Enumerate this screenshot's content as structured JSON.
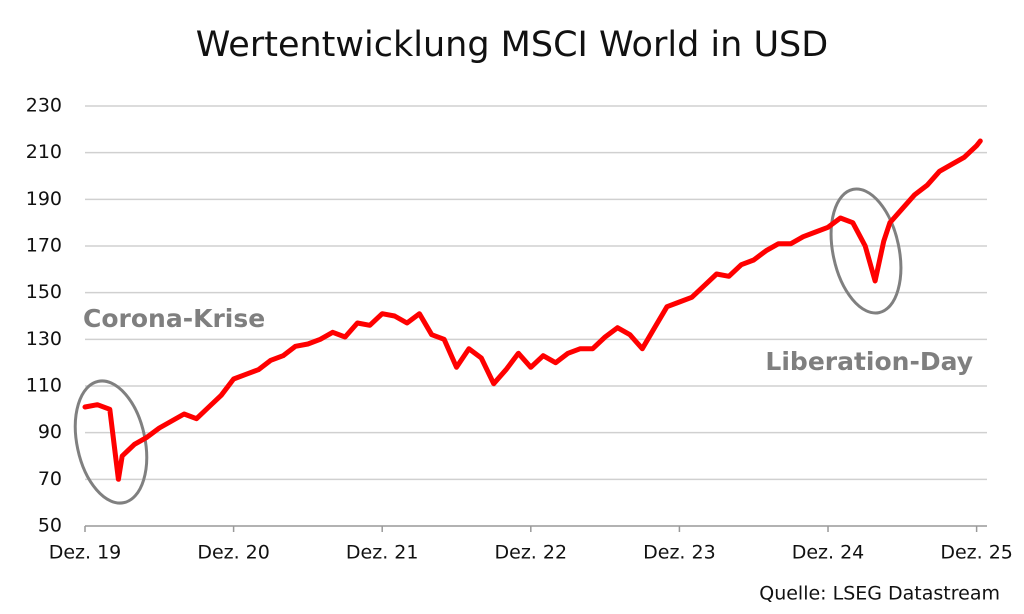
{
  "chart_data": {
    "type": "line",
    "title": "Wertentwicklung MSCI World in USD",
    "x": [
      0,
      1,
      2,
      2.7,
      3,
      4,
      5,
      6,
      7,
      8,
      9,
      10,
      11,
      12,
      13,
      14,
      15,
      16,
      17,
      18,
      19,
      20,
      21,
      22,
      23,
      24,
      25,
      26,
      27,
      28,
      29,
      30,
      31,
      32,
      33,
      34,
      35,
      36,
      37,
      38,
      39,
      40,
      41,
      42,
      43,
      44,
      45,
      46,
      47,
      48,
      49,
      50,
      51,
      52,
      53,
      54,
      55,
      56,
      57,
      58,
      59,
      60,
      61,
      62,
      62.5,
      63,
      63.8,
      64.5,
      65,
      66,
      67,
      68,
      69,
      70,
      71,
      72,
      72.3
    ],
    "values": [
      101,
      102,
      100,
      70,
      80,
      85,
      88,
      92,
      95,
      98,
      96,
      101,
      106,
      113,
      115,
      117,
      121,
      123,
      127,
      128,
      130,
      133,
      131,
      137,
      136,
      141,
      140,
      137,
      141,
      132,
      130,
      118,
      126,
      122,
      111,
      117,
      124,
      118,
      123,
      120,
      124,
      126,
      126,
      131,
      135,
      132,
      126,
      135,
      144,
      146,
      148,
      153,
      158,
      157,
      162,
      164,
      168,
      171,
      171,
      174,
      176,
      178,
      182,
      180,
      175,
      170,
      155,
      172,
      180,
      186,
      192,
      196,
      202,
      205,
      208,
      213,
      215
    ],
    "color": "#ff0000",
    "xlim": [
      0,
      73
    ],
    "xticks": [
      {
        "value": 0,
        "label": "Dez. 19"
      },
      {
        "value": 12,
        "label": "Dez. 20"
      },
      {
        "value": 24,
        "label": "Dez. 21"
      },
      {
        "value": 36,
        "label": "Dez. 22"
      },
      {
        "value": 48,
        "label": "Dez. 23"
      },
      {
        "value": 60,
        "label": "Dez. 24"
      },
      {
        "value": 72,
        "label": "Dez. 25"
      }
    ],
    "ylim": [
      50,
      230
    ],
    "yticks": [
      50,
      70,
      90,
      110,
      130,
      150,
      170,
      190,
      210,
      230
    ],
    "grid": true,
    "annotations": [
      "Corona-Krise",
      "Liberation-Day"
    ],
    "source": "Quelle: LSEG Datastream"
  }
}
